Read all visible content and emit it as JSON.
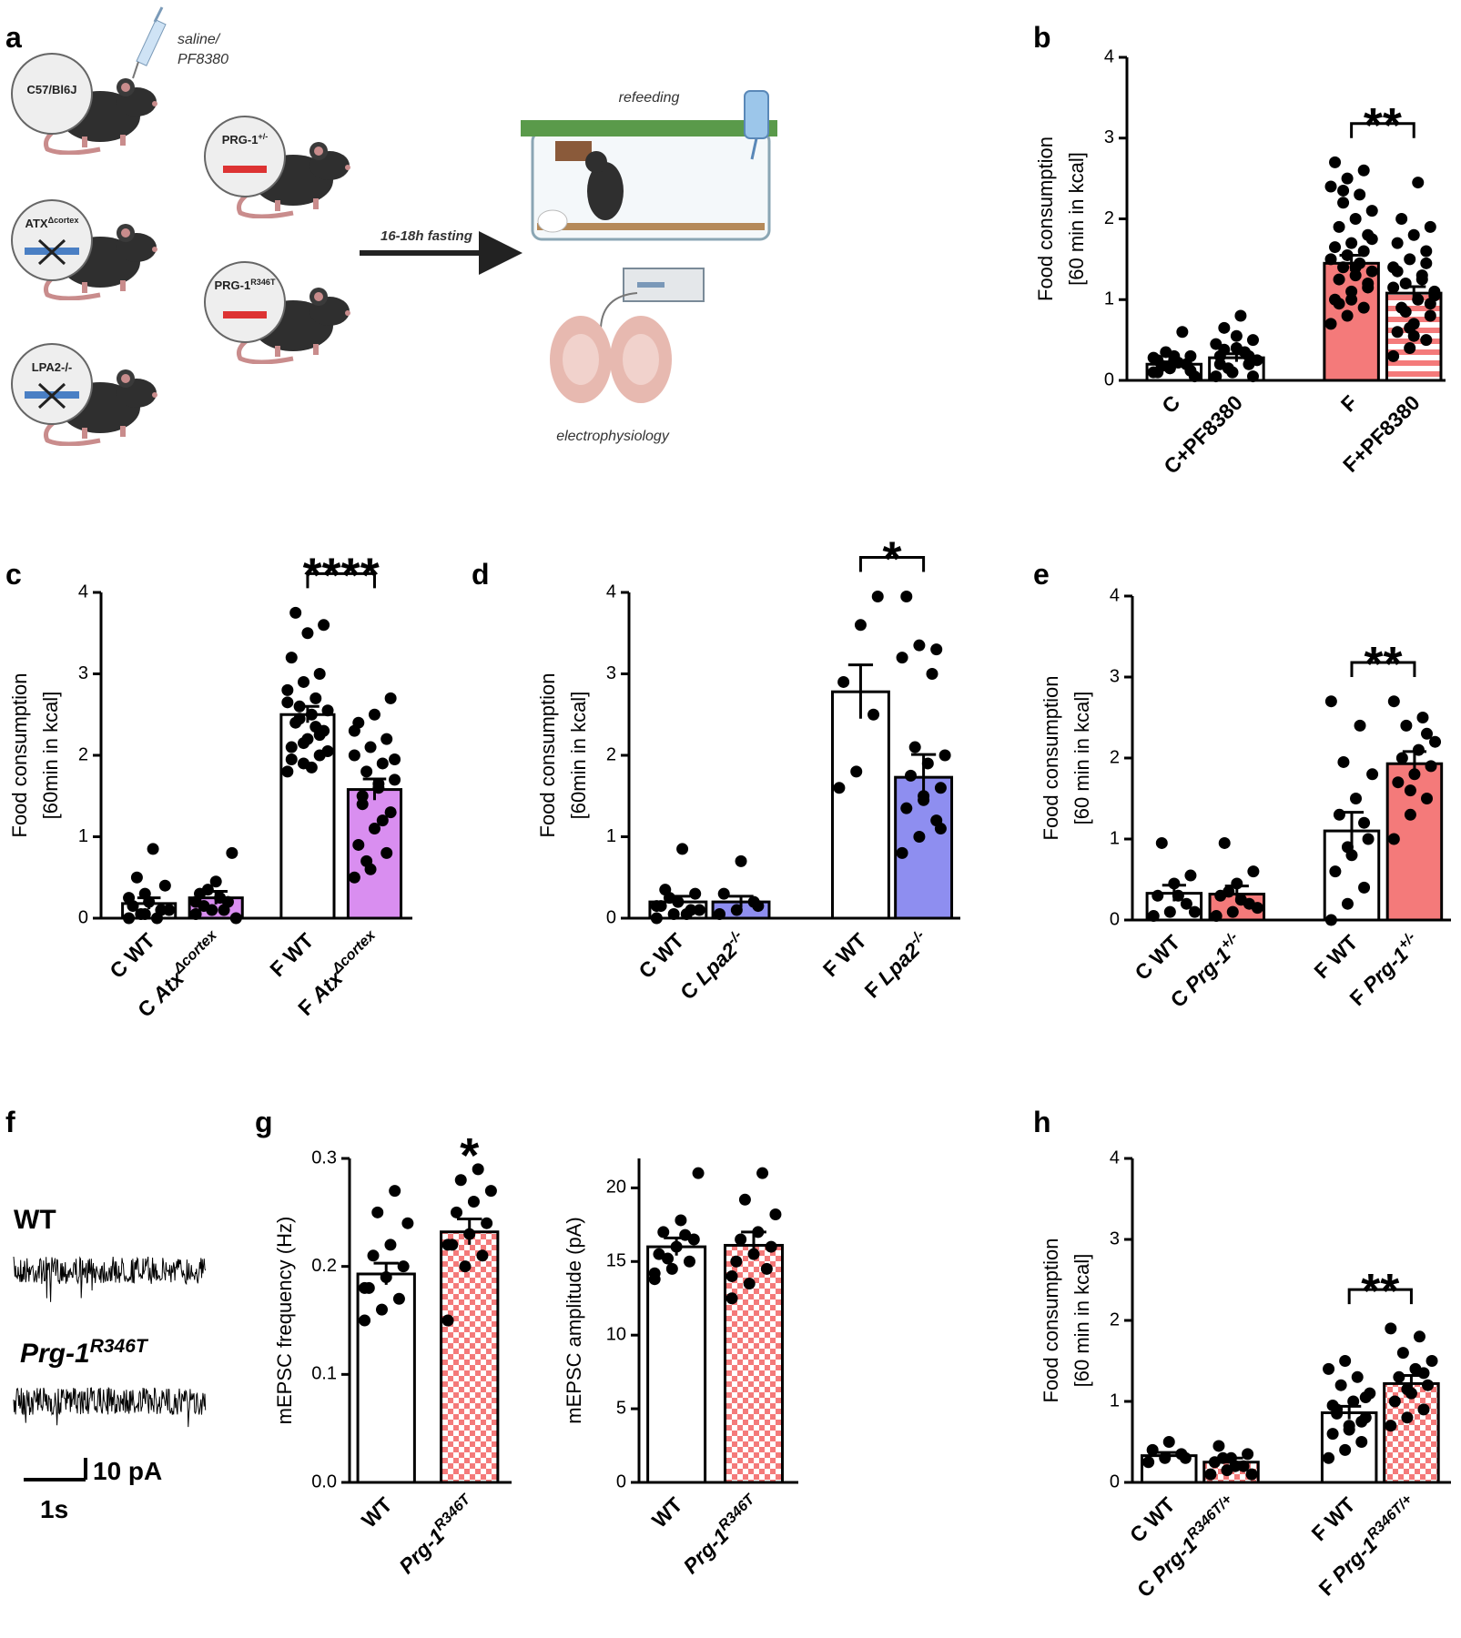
{
  "schematic": {
    "panel": "a",
    "injection": [
      "saline/",
      "PF8380"
    ],
    "mice": [
      [
        "C57/Bl6J"
      ],
      [
        "ATX",
        {
          "text": "Δcortex",
          "style": "sup"
        }
      ],
      [
        "LPA2-/-"
      ],
      [
        "PRG-1",
        {
          "text": "+/-",
          "style": "sup"
        }
      ],
      [
        "PRG-1",
        {
          "text": "R346T",
          "style": "sup"
        }
      ]
    ],
    "fasting": "16-18h fasting",
    "refeeding": "refeeding",
    "recording": "electrophysiology"
  },
  "trace": {
    "panel": "f",
    "labels": [
      [
        "WT"
      ],
      [
        {
          "text": "Prg-1",
          "style": "i"
        },
        {
          "text": "R346T",
          "style": "isup"
        }
      ]
    ],
    "scale_y": "10 pA",
    "scale_x": "1s"
  },
  "chart_data": [
    {
      "type": "bar",
      "panel": "b",
      "ylabel": [
        "Food consumption",
        "[60 min in kcal]"
      ],
      "categories": [
        [
          "C"
        ],
        [
          "C+PF8380"
        ],
        [
          "F"
        ],
        [
          "F+PF8380"
        ]
      ],
      "values": [
        0.2,
        0.28,
        1.45,
        1.08
      ],
      "errors": [
        0.03,
        0.05,
        0.1,
        0.08
      ],
      "fills": [
        "#ffffff",
        "#ffffff",
        "#f47a7a",
        {
          "color": "#f47a7a",
          "pattern": "stripes"
        }
      ],
      "points": [
        [
          0.1,
          0.15,
          0.2,
          0.25,
          0.3,
          0.12,
          0.18,
          0.22,
          0.05,
          0.35,
          0.6,
          0.28,
          0.15,
          0.2,
          0.1,
          0.25,
          0.3,
          0.18
        ],
        [
          0.05,
          0.1,
          0.2,
          0.3,
          0.4,
          0.5,
          0.65,
          0.8,
          0.25,
          0.15,
          0.35,
          0.45,
          0.1,
          0.3,
          0.2,
          0.55,
          0.05,
          0.38
        ],
        [
          0.7,
          0.8,
          0.9,
          1.0,
          1.1,
          1.2,
          1.25,
          1.3,
          1.35,
          1.4,
          1.45,
          1.5,
          1.55,
          1.6,
          1.65,
          1.7,
          1.8,
          1.9,
          2.0,
          2.1,
          2.2,
          2.3,
          2.4,
          2.5,
          2.6,
          2.7,
          1.0,
          1.15,
          0.95,
          1.4,
          1.75,
          2.35
        ],
        [
          0.3,
          0.4,
          0.5,
          0.6,
          0.7,
          0.8,
          0.9,
          1.0,
          1.1,
          1.2,
          1.3,
          1.4,
          1.5,
          1.6,
          1.7,
          1.8,
          1.9,
          2.0,
          2.45,
          1.05,
          0.85,
          1.25,
          1.15,
          0.65,
          1.45,
          1.35,
          0.55,
          0.95
        ]
      ],
      "significance": {
        "text": "**",
        "from": 2,
        "to": 3
      },
      "ylim": [
        0,
        4
      ],
      "yticks": [
        0,
        1,
        2,
        3,
        4
      ]
    },
    {
      "type": "bar",
      "panel": "c",
      "ylabel": [
        "Food consumption",
        "[60min in kcal]"
      ],
      "categories": [
        [
          "C WT"
        ],
        [
          "C ",
          {
            "text": "Atx",
            "style": "i"
          },
          {
            "text": "Δcortex",
            "style": "isup"
          }
        ],
        [
          "F WT"
        ],
        [
          "F ",
          {
            "text": "Atx",
            "style": "i"
          },
          {
            "text": "Δcortex",
            "style": "isup"
          }
        ]
      ],
      "values": [
        0.18,
        0.25,
        2.5,
        1.58
      ],
      "errors": [
        0.07,
        0.08,
        0.1,
        0.13
      ],
      "fills": [
        "#ffffff",
        "#d98ef0",
        "#ffffff",
        "#d98ef0"
      ],
      "points": [
        [
          0,
          0.05,
          0.1,
          0.15,
          0.2,
          0.4,
          0.5,
          0.85,
          0.1,
          0.05,
          0,
          0.25,
          0.3
        ],
        [
          0.05,
          0.1,
          0.2,
          0.3,
          0.45,
          0.8,
          0.15,
          0.25,
          0,
          0.35,
          0.1,
          0.2
        ],
        [
          1.8,
          1.9,
          2.0,
          2.1,
          2.2,
          2.3,
          2.4,
          2.5,
          2.55,
          2.6,
          2.7,
          2.8,
          2.9,
          3.0,
          3.2,
          3.5,
          3.6,
          3.75,
          1.85,
          2.05,
          2.45,
          2.35,
          2.65,
          2.15,
          2.25,
          1.95
        ],
        [
          0.5,
          0.6,
          0.8,
          0.9,
          1.1,
          1.3,
          1.5,
          1.6,
          1.7,
          1.8,
          1.9,
          2.0,
          2.1,
          2.2,
          2.4,
          2.5,
          2.7,
          1.4,
          1.65,
          1.95,
          0.7,
          1.2,
          2.3
        ]
      ],
      "significance": {
        "text": "****",
        "from": 2,
        "to": 3
      },
      "ylim": [
        0,
        4
      ],
      "yticks": [
        0,
        1,
        2,
        3,
        4
      ]
    },
    {
      "type": "bar",
      "panel": "d",
      "ylabel": [
        "Food consumption",
        "[60min in kcal]"
      ],
      "categories": [
        [
          "C WT"
        ],
        [
          "C ",
          {
            "text": "Lpa2",
            "style": "i"
          },
          {
            "text": "-/-",
            "style": "isup"
          }
        ],
        [
          "F WT"
        ],
        [
          "F ",
          {
            "text": "Lpa2",
            "style": "i"
          },
          {
            "text": "-/-",
            "style": "isup"
          }
        ]
      ],
      "values": [
        0.2,
        0.2,
        2.78,
        1.73
      ],
      "errors": [
        0.07,
        0.07,
        0.33,
        0.28
      ],
      "fills": [
        "#ffffff",
        "#8e8ef0",
        "#ffffff",
        "#8e8ef0"
      ],
      "points": [
        [
          0,
          0.05,
          0.1,
          0.15,
          0.2,
          0.3,
          0.35,
          0.85,
          0.1,
          0.25,
          0.05,
          0.15
        ],
        [
          0.05,
          0.1,
          0.2,
          0.3,
          0.7,
          0.15
        ],
        [
          1.6,
          1.8,
          2.5,
          2.9,
          3.6,
          3.95
        ],
        [
          0.8,
          1.0,
          1.2,
          1.35,
          1.5,
          1.6,
          1.75,
          1.9,
          2.0,
          2.1,
          3.0,
          3.2,
          3.35,
          3.3,
          3.95,
          1.45,
          1.1
        ]
      ],
      "significance": {
        "text": "*",
        "from": 2,
        "to": 3
      },
      "ylim": [
        0,
        4
      ],
      "yticks": [
        0,
        1,
        2,
        3,
        4
      ]
    },
    {
      "type": "bar",
      "panel": "e",
      "ylabel": [
        "Food consumption",
        "[60 min in kcal]"
      ],
      "categories": [
        [
          "C WT"
        ],
        [
          "C ",
          {
            "text": "Prg-1",
            "style": "i"
          },
          {
            "text": "+/-",
            "style": "isup"
          }
        ],
        [
          "F WT"
        ],
        [
          "F ",
          {
            "text": "Prg-1",
            "style": "i"
          },
          {
            "text": "+/-",
            "style": "isup"
          }
        ]
      ],
      "values": [
        0.33,
        0.32,
        1.1,
        1.93
      ],
      "errors": [
        0.1,
        0.1,
        0.23,
        0.15
      ],
      "fills": [
        "#ffffff",
        "#f47a7a",
        "#ffffff",
        "#f47a7a"
      ],
      "points": [
        [
          0.05,
          0.1,
          0.2,
          0.3,
          0.45,
          0.55,
          0.95,
          0.3,
          0.1
        ],
        [
          0.05,
          0.1,
          0.2,
          0.3,
          0.45,
          0.6,
          0.95,
          0.25,
          0.15,
          0.35
        ],
        [
          0,
          0.2,
          0.4,
          0.6,
          0.8,
          1.0,
          1.3,
          1.5,
          1.8,
          1.95,
          2.4,
          2.7,
          0.9,
          1.2
        ],
        [
          1.0,
          1.3,
          1.5,
          1.7,
          1.8,
          1.9,
          2.0,
          2.1,
          2.2,
          2.4,
          2.5,
          2.7,
          1.6,
          2.3
        ]
      ],
      "significance": {
        "text": "**",
        "from": 2,
        "to": 3
      },
      "ylim": [
        0,
        4
      ],
      "yticks": [
        0,
        1,
        2,
        3,
        4
      ]
    },
    {
      "type": "bar",
      "panel": "g",
      "ylabel": [
        "mEPSC frequency (Hz)"
      ],
      "categories": [
        [
          "WT"
        ],
        [
          {
            "text": "Prg-1",
            "style": "i"
          },
          {
            "text": "R346T",
            "style": "isup"
          }
        ]
      ],
      "values": [
        0.193,
        0.232
      ],
      "errors": [
        0.01,
        0.012
      ],
      "fills": [
        "#ffffff",
        {
          "color": "#f47a7a",
          "pattern": "checker"
        }
      ],
      "points": [
        [
          0.15,
          0.16,
          0.17,
          0.18,
          0.19,
          0.2,
          0.21,
          0.22,
          0.24,
          0.25,
          0.27,
          0.18
        ],
        [
          0.15,
          0.2,
          0.21,
          0.22,
          0.23,
          0.24,
          0.25,
          0.26,
          0.27,
          0.28,
          0.29,
          0.22
        ]
      ],
      "significance": {
        "text": "*",
        "from": 1,
        "to": 1
      },
      "ylim": [
        0,
        0.3
      ],
      "yticks": [
        {
          "value": 0,
          "label": "0.0"
        },
        0.1,
        0.2,
        0.3
      ]
    },
    {
      "type": "bar",
      "ylabel": [
        "mEPSC amplitude (pA)"
      ],
      "categories": [
        [
          "WT"
        ],
        [
          {
            "text": "Prg-1",
            "style": "i"
          },
          {
            "text": "R346T",
            "style": "isup"
          }
        ]
      ],
      "values": [
        16,
        16.1
      ],
      "errors": [
        0.6,
        0.9
      ],
      "fills": [
        "#ffffff",
        {
          "color": "#f47a7a",
          "pattern": "checker"
        }
      ],
      "points": [
        [
          13.8,
          14.5,
          15,
          15.5,
          16,
          16.5,
          17,
          17.8,
          21,
          15.2,
          16.8,
          14.2
        ],
        [
          12.5,
          13.5,
          14.5,
          15,
          15.5,
          16,
          16.5,
          17,
          18.2,
          19.2,
          21,
          14
        ]
      ],
      "ylim": [
        0,
        22
      ],
      "yticks": [
        0,
        5,
        10,
        15,
        20
      ]
    },
    {
      "type": "bar",
      "panel": "h",
      "ylabel": [
        "Food consumption",
        "[60 min in kcal]"
      ],
      "categories": [
        [
          "C WT"
        ],
        [
          "C ",
          {
            "text": "Prg-1",
            "style": "i"
          },
          {
            "text": "R346T/+",
            "style": "isup"
          }
        ],
        [
          "F WT"
        ],
        [
          "F ",
          {
            "text": "Prg-1",
            "style": "i"
          },
          {
            "text": "R346T/+",
            "style": "isup"
          }
        ]
      ],
      "values": [
        0.33,
        0.25,
        0.86,
        1.22
      ],
      "errors": [
        0.04,
        0.05,
        0.08,
        0.1
      ],
      "fills": [
        "#ffffff",
        {
          "color": "#f47a7a",
          "pattern": "checker"
        },
        "#ffffff",
        {
          "color": "#f47a7a",
          "pattern": "checker"
        }
      ],
      "points": [
        [
          0.25,
          0.3,
          0.35,
          0.4,
          0.5,
          0.3
        ],
        [
          0.1,
          0.15,
          0.2,
          0.25,
          0.3,
          0.35,
          0.45,
          0.2,
          0.1,
          0.3
        ],
        [
          0.3,
          0.4,
          0.5,
          0.6,
          0.7,
          0.8,
          0.9,
          1.0,
          1.1,
          1.2,
          1.3,
          1.4,
          1.5,
          0.75,
          0.95,
          0.65,
          1.05,
          0.85
        ],
        [
          0.7,
          0.8,
          0.9,
          1.0,
          1.1,
          1.2,
          1.3,
          1.4,
          1.5,
          1.6,
          1.8,
          1.9,
          1.15,
          1.35
        ]
      ],
      "significance": {
        "text": "**",
        "from": 2,
        "to": 3
      },
      "ylim": [
        0,
        4
      ],
      "yticks": [
        0,
        1,
        2,
        3,
        4
      ]
    }
  ]
}
